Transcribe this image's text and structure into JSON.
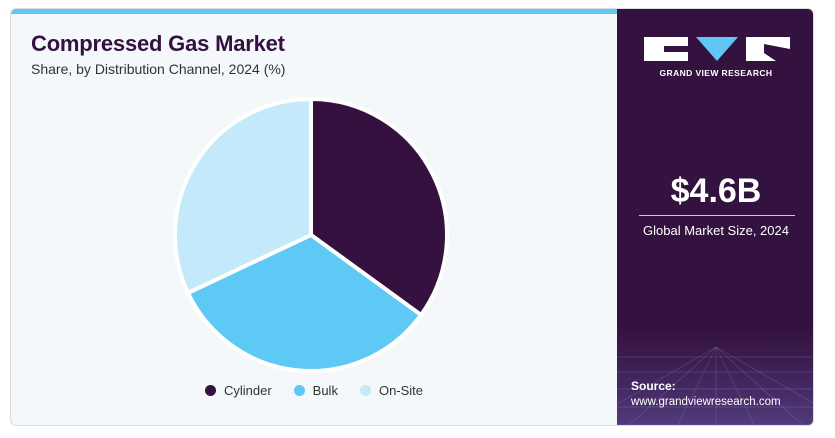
{
  "header": {
    "title": "Compressed Gas Market",
    "subtitle": "Share, by Distribution Channel, 2024 (%)"
  },
  "chart_data": {
    "type": "pie",
    "title": "Compressed Gas Market",
    "subtitle": "Share, by Distribution Channel, 2024 (%)",
    "categories": [
      "Cylinder",
      "Bulk",
      "On-Site"
    ],
    "values": [
      35,
      33,
      32
    ],
    "colors": [
      "#35113f",
      "#5fc9f5",
      "#c3e9fa"
    ],
    "start_angle_deg": 0,
    "direction": "clockwise",
    "legend_position": "bottom"
  },
  "legend": {
    "items": [
      {
        "label": "Cylinder",
        "color": "#35113f"
      },
      {
        "label": "Bulk",
        "color": "#5fc9f5"
      },
      {
        "label": "On-Site",
        "color": "#c3e9fa"
      }
    ]
  },
  "sidebar": {
    "brand_name": "GRAND VIEW RESEARCH",
    "market_size": "$4.6B",
    "market_size_caption": "Global Market Size, 2024",
    "source_label": "Source:",
    "source_url": "www.grandviewresearch.com",
    "colors": {
      "background": "#34123f",
      "accent": "#5fc7f2"
    }
  }
}
